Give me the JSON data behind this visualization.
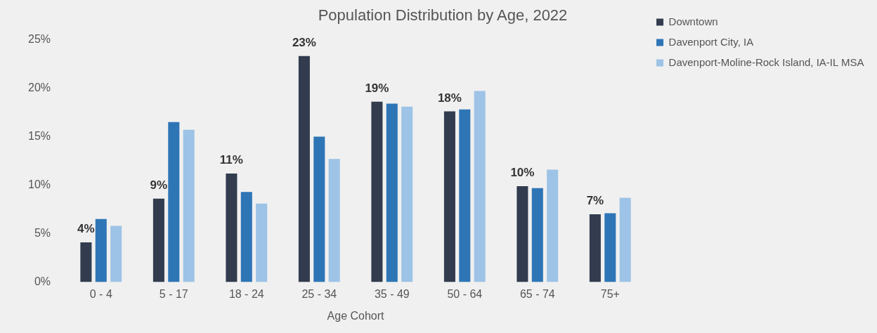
{
  "chart_data": {
    "type": "bar",
    "title": "Population Distribution by Age, 2022",
    "xlabel": "Age Cohort",
    "categories": [
      "0 - 4",
      "5 - 17",
      "18 - 24",
      "25 - 34",
      "35 - 49",
      "50 - 64",
      "65 - 74",
      "75+"
    ],
    "series": [
      {
        "name": "Downtown",
        "color": "#323c4e",
        "values": [
          4.1,
          8.6,
          11.2,
          23.3,
          18.6,
          17.6,
          9.9,
          7.0
        ],
        "value_labels": [
          "4%",
          "9%",
          "11%",
          "23%",
          "19%",
          "18%",
          "10%",
          "7%"
        ]
      },
      {
        "name": "Davenport City, IA",
        "color": "#2e75b6",
        "values": [
          6.5,
          16.5,
          9.3,
          15.0,
          18.4,
          17.8,
          9.7,
          7.1
        ]
      },
      {
        "name": "Davenport-Moline-Rock Island, IA-IL MSA",
        "color": "#9dc3e6",
        "values": [
          5.8,
          15.7,
          8.1,
          12.7,
          18.1,
          19.7,
          11.6,
          8.7
        ]
      }
    ],
    "ylim": [
      0,
      25
    ],
    "yticks": [
      {
        "value": 0,
        "label": "0%"
      },
      {
        "value": 5,
        "label": "5%"
      },
      {
        "value": 10,
        "label": "10%"
      },
      {
        "value": 15,
        "label": "15%"
      },
      {
        "value": 20,
        "label": "20%"
      },
      {
        "value": 25,
        "label": "25%"
      }
    ],
    "grid": false,
    "legend": "top right"
  }
}
